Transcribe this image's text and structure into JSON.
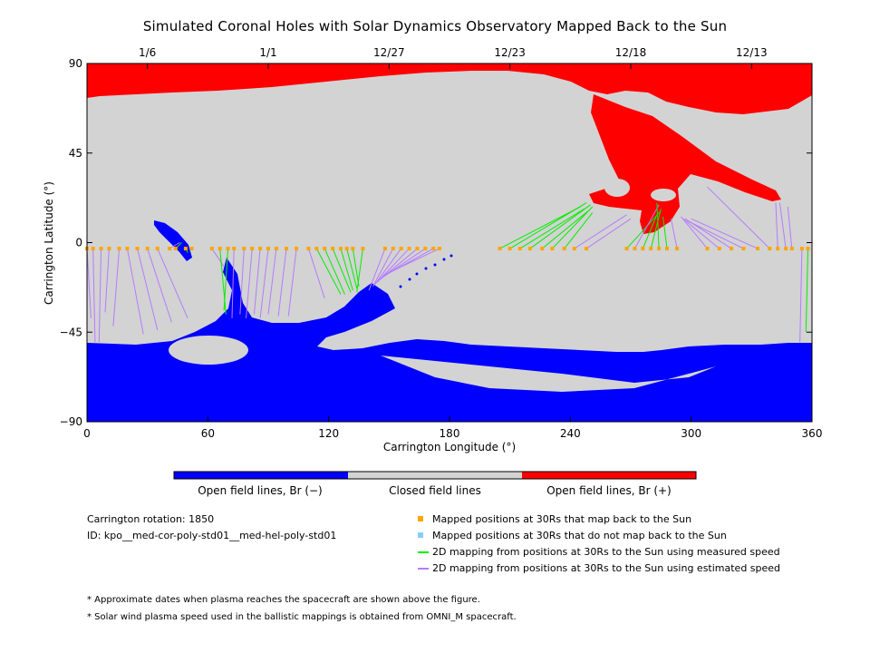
{
  "chart_data": {
    "type": "scatter",
    "title": "Simulated Coronal Holes with Solar Dynamics Observatory Mapped Back to the Sun",
    "xlabel": "Carrington Longitude (°)",
    "ylabel": "Carrington Latitude (°)",
    "xlim": [
      0,
      360
    ],
    "ylim": [
      -90,
      90
    ],
    "x_ticks": [
      "0",
      "60",
      "120",
      "180",
      "240",
      "300",
      "360"
    ],
    "y_ticks": [
      "90",
      "45",
      "0",
      "−45",
      "−90"
    ],
    "top_date_ticks": [
      {
        "lon": 30,
        "label": "1/6"
      },
      {
        "lon": 90,
        "label": "1/1"
      },
      {
        "lon": 150,
        "label": "12/27"
      },
      {
        "lon": 210,
        "label": "12/23"
      },
      {
        "lon": 270,
        "label": "12/18"
      },
      {
        "lon": 330,
        "label": "12/13"
      }
    ],
    "colorbar": [
      {
        "label": "Open field lines, Br (−)",
        "color": "#0000ff"
      },
      {
        "label": "Closed field lines",
        "color": "#d3d3d3"
      },
      {
        "label": "Open field lines, Br (+)",
        "color": "#ff0000"
      }
    ],
    "spacecraft_lat": -3,
    "mappings": [
      {
        "lon": 0,
        "src_lon": 2,
        "src_lat": -38,
        "mode": "estimated"
      },
      {
        "lon": 3,
        "src_lon": 4,
        "src_lat": -50,
        "mode": "estimated"
      },
      {
        "lon": 7,
        "src_lon": 6,
        "src_lat": -50,
        "mode": "estimated"
      },
      {
        "lon": 11,
        "src_lon": 9,
        "src_lat": -35,
        "mode": "estimated"
      },
      {
        "lon": 16,
        "src_lon": 13,
        "src_lat": -42,
        "mode": "estimated"
      },
      {
        "lon": 20,
        "src_lon": 28,
        "src_lat": -46,
        "mode": "estimated"
      },
      {
        "lon": 25,
        "src_lon": 35,
        "src_lat": -44,
        "mode": "estimated"
      },
      {
        "lon": 30,
        "src_lon": 42,
        "src_lat": -40,
        "mode": "estimated"
      },
      {
        "lon": 35,
        "src_lon": 50,
        "src_lat": -38,
        "mode": "estimated"
      },
      {
        "lon": 41,
        "src_lon": 46,
        "src_lat": 0,
        "mode": "estimated"
      },
      {
        "lon": 44,
        "src_lon": 47,
        "src_lat": 0,
        "mode": "measured"
      },
      {
        "lon": 49,
        "src_lon": 50,
        "src_lat": -5,
        "mode": "measured"
      },
      {
        "lon": 52,
        "src_lon": 51,
        "src_lat": -4,
        "mode": "measured"
      },
      {
        "lon": 62,
        "src_lon": 68,
        "src_lat": -12,
        "mode": "estimated"
      },
      {
        "lon": 66,
        "src_lon": 69,
        "src_lat": -36,
        "mode": "measured"
      },
      {
        "lon": 70,
        "src_lon": 68,
        "src_lat": -34,
        "mode": "measured"
      },
      {
        "lon": 73,
        "src_lon": 72,
        "src_lat": -38,
        "mode": "estimated"
      },
      {
        "lon": 78,
        "src_lon": 76,
        "src_lat": -36,
        "mode": "estimated"
      },
      {
        "lon": 82,
        "src_lon": 79,
        "src_lat": -38,
        "mode": "estimated"
      },
      {
        "lon": 86,
        "src_lon": 83,
        "src_lat": -36,
        "mode": "estimated"
      },
      {
        "lon": 90,
        "src_lon": 86,
        "src_lat": -38,
        "mode": "estimated"
      },
      {
        "lon": 94,
        "src_lon": 90,
        "src_lat": -36,
        "mode": "estimated"
      },
      {
        "lon": 99,
        "src_lon": 95,
        "src_lat": -37,
        "mode": "estimated"
      },
      {
        "lon": 104,
        "src_lon": 100,
        "src_lat": -37,
        "mode": "estimated"
      },
      {
        "lon": 110,
        "src_lon": 118,
        "src_lat": -28,
        "mode": "estimated"
      },
      {
        "lon": 114,
        "src_lon": 126,
        "src_lat": -26,
        "mode": "measured"
      },
      {
        "lon": 118,
        "src_lon": 128,
        "src_lat": -26,
        "mode": "measured"
      },
      {
        "lon": 122,
        "src_lon": 131,
        "src_lat": -25,
        "mode": "measured"
      },
      {
        "lon": 126,
        "src_lon": 132,
        "src_lat": -24,
        "mode": "measured"
      },
      {
        "lon": 129,
        "src_lon": 134,
        "src_lat": -23,
        "mode": "measured"
      },
      {
        "lon": 132,
        "src_lon": 135,
        "src_lat": -22,
        "mode": "measured"
      },
      {
        "lon": 137,
        "src_lon": 134,
        "src_lat": -25,
        "mode": "measured"
      },
      {
        "lon": 148,
        "src_lon": 140,
        "src_lat": -24,
        "mode": "estimated"
      },
      {
        "lon": 152,
        "src_lon": 142,
        "src_lat": -22,
        "mode": "estimated"
      },
      {
        "lon": 156,
        "src_lon": 143,
        "src_lat": -21,
        "mode": "estimated"
      },
      {
        "lon": 160,
        "src_lon": 144,
        "src_lat": -20,
        "mode": "estimated"
      },
      {
        "lon": 164,
        "src_lon": 145,
        "src_lat": -19,
        "mode": "estimated"
      },
      {
        "lon": 168,
        "src_lon": 146,
        "src_lat": -18,
        "mode": "estimated"
      },
      {
        "lon": 172,
        "src_lon": 147,
        "src_lat": -17,
        "mode": "estimated"
      },
      {
        "lon": 175,
        "src_lon": 148,
        "src_lat": -16,
        "mode": "estimated"
      },
      {
        "lon": 205,
        "src_lon": 245,
        "src_lat": 18,
        "mode": "measured"
      },
      {
        "lon": 210,
        "src_lon": 248,
        "src_lat": 20,
        "mode": "measured"
      },
      {
        "lon": 215,
        "src_lon": 247,
        "src_lat": 17,
        "mode": "measured"
      },
      {
        "lon": 220,
        "src_lon": 250,
        "src_lat": 19,
        "mode": "measured"
      },
      {
        "lon": 226,
        "src_lon": 249,
        "src_lat": 16,
        "mode": "measured"
      },
      {
        "lon": 231,
        "src_lon": 251,
        "src_lat": 18,
        "mode": "measured"
      },
      {
        "lon": 237,
        "src_lon": 251,
        "src_lat": 15,
        "mode": "measured"
      },
      {
        "lon": 242,
        "src_lon": 268,
        "src_lat": 14,
        "mode": "estimated"
      },
      {
        "lon": 248,
        "src_lon": 270,
        "src_lat": 12,
        "mode": "estimated"
      },
      {
        "lon": 268,
        "src_lon": 285,
        "src_lat": 16,
        "mode": "measured"
      },
      {
        "lon": 272,
        "src_lon": 284,
        "src_lat": 19,
        "mode": "estimated"
      },
      {
        "lon": 276,
        "src_lon": 283,
        "src_lat": 14,
        "mode": "measured"
      },
      {
        "lon": 280,
        "src_lon": 285,
        "src_lat": 17,
        "mode": "measured"
      },
      {
        "lon": 284,
        "src_lon": 283,
        "src_lat": 20,
        "mode": "measured"
      },
      {
        "lon": 288,
        "src_lon": 286,
        "src_lat": 13,
        "mode": "measured"
      },
      {
        "lon": 293,
        "src_lon": 290,
        "src_lat": 12,
        "mode": "estimated"
      },
      {
        "lon": 308,
        "src_lon": 295,
        "src_lat": 13,
        "mode": "estimated"
      },
      {
        "lon": 314,
        "src_lon": 296,
        "src_lat": 12,
        "mode": "estimated"
      },
      {
        "lon": 320,
        "src_lon": 297,
        "src_lat": 12,
        "mode": "estimated"
      },
      {
        "lon": 326,
        "src_lon": 298,
        "src_lat": 11,
        "mode": "estimated"
      },
      {
        "lon": 333,
        "src_lon": 300,
        "src_lat": 12,
        "mode": "estimated"
      },
      {
        "lon": 339,
        "src_lon": 308,
        "src_lat": 28,
        "mode": "estimated"
      },
      {
        "lon": 343,
        "src_lon": 342,
        "src_lat": 20,
        "mode": "estimated"
      },
      {
        "lon": 347,
        "src_lon": 344,
        "src_lat": 20,
        "mode": "estimated"
      },
      {
        "lon": 350,
        "src_lon": 348,
        "src_lat": 18,
        "mode": "estimated"
      },
      {
        "lon": 355,
        "src_lon": 354,
        "src_lat": -50,
        "mode": "estimated"
      },
      {
        "lon": 358,
        "src_lon": 357,
        "src_lat": -45,
        "mode": "measured"
      }
    ]
  },
  "legend": {
    "mapped_back": "Mapped positions at 30Rs that map back to the Sun",
    "not_mapped": "Mapped positions at 30Rs that do not map back to the Sun",
    "measured": "2D mapping from positions at 30Rs to the Sun using measured speed",
    "estimated": "2D mapping from positions at 30Rs to the Sun using estimated speed",
    "colors": {
      "mapped_back": "#ffa500",
      "not_mapped": "#87cefa",
      "measured": "#00ee00",
      "estimated": "#b57bff"
    }
  },
  "info": {
    "carrington": "Carrington rotation: 1850",
    "id": "ID: kpo__med-cor-poly-std01__med-hel-poly-std01"
  },
  "notes": {
    "note1": "* Approximate dates when plasma reaches the spacecraft are shown above the figure.",
    "note2": "* Solar wind plasma speed used in the ballistic mappings is obtained from OMNI_M spacecraft."
  }
}
